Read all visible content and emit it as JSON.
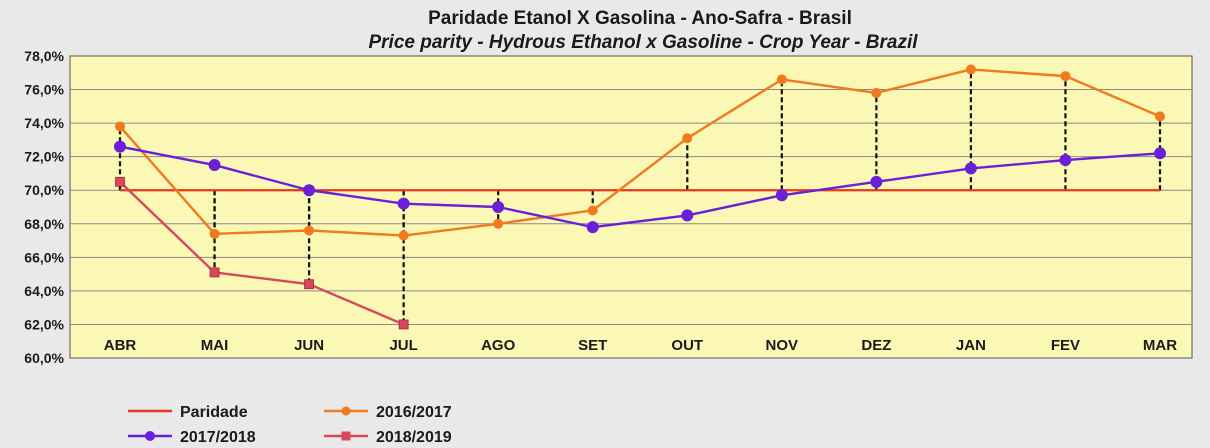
{
  "chart_data": {
    "type": "line",
    "title": "Paridade Etanol X Gasolina  - Ano-Safra - Brasil",
    "subtitle": "Price parity - Hydrous Ethanol x Gasoline - Crop Year - Brazil",
    "categories": [
      "ABR",
      "MAI",
      "JUN",
      "JUL",
      "AGO",
      "SET",
      "OUT",
      "NOV",
      "DEZ",
      "JAN",
      "FEV",
      "MAR"
    ],
    "ylim": [
      60,
      78
    ],
    "yticks": [
      "60,0%",
      "62,0%",
      "64,0%",
      "66,0%",
      "68,0%",
      "70,0%",
      "72,0%",
      "74,0%",
      "76,0%",
      "78,0%"
    ],
    "ytick_values": [
      60,
      62,
      64,
      66,
      68,
      70,
      72,
      74,
      76,
      78
    ],
    "grid": "horizontal",
    "legend_position": "bottom",
    "series": [
      {
        "name": "Paridade",
        "color": "#e03b1f",
        "marker": "none",
        "values": [
          70,
          70,
          70,
          70,
          70,
          70,
          70,
          70,
          70,
          70,
          70,
          70
        ]
      },
      {
        "name": "2016/2017",
        "color": "#f07a1f",
        "marker": "circle",
        "values": [
          73.8,
          67.4,
          67.6,
          67.3,
          68.0,
          68.8,
          73.1,
          76.6,
          75.8,
          77.2,
          76.8,
          74.4
        ]
      },
      {
        "name": "2017/2018",
        "color": "#6a1fd8",
        "marker": "circle",
        "values": [
          72.6,
          71.5,
          70.0,
          69.2,
          69.0,
          67.8,
          68.5,
          69.7,
          70.5,
          71.3,
          71.8,
          72.2
        ]
      },
      {
        "name": "2018/2019",
        "color": "#d9475c",
        "marker": "square",
        "values": [
          70.5,
          65.1,
          64.4,
          62.0,
          null,
          null,
          null,
          null,
          null,
          null,
          null,
          null
        ]
      }
    ]
  }
}
